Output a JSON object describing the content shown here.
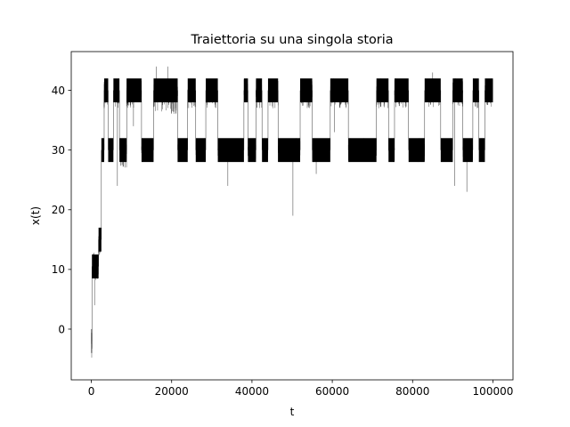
{
  "chart_data": {
    "type": "line",
    "title": "Traiettoria su una singola storia",
    "xlabel": "t",
    "ylabel": "x(t)",
    "xlim": [
      -5000,
      105000
    ],
    "ylim": [
      -8.5,
      46.5
    ],
    "xticks": [
      0,
      20000,
      40000,
      60000,
      80000,
      100000
    ],
    "xtick_labels": [
      "0",
      "20000",
      "40000",
      "60000",
      "80000",
      "100000"
    ],
    "yticks": [
      0,
      10,
      20,
      30,
      40
    ],
    "ytick_labels": [
      "0",
      "10",
      "20",
      "30",
      "40"
    ],
    "grid": false,
    "line_color": "#000000",
    "series": [
      {
        "segments": [
          {
            "t_start": 0,
            "t_end": 150,
            "center": -2,
            "band": [
              -6,
              0
            ]
          },
          {
            "t_start": 150,
            "t_end": 1800,
            "center": 10.5,
            "band": [
              8,
              13
            ]
          },
          {
            "t_start": 1800,
            "t_end": 2500,
            "center": 15,
            "band": [
              12,
              17
            ]
          },
          {
            "t_start": 2500,
            "t_end": 3200,
            "center": 30,
            "band": [
              28,
              32
            ]
          },
          {
            "t_start": 3200,
            "t_end": 4200,
            "center": 40,
            "band": [
              36,
              42
            ]
          },
          {
            "t_start": 4200,
            "t_end": 5500,
            "center": 30,
            "band": [
              28,
              32
            ]
          },
          {
            "t_start": 5500,
            "t_end": 7000,
            "center": 40,
            "band": [
              37,
              42
            ]
          },
          {
            "t_start": 7000,
            "t_end": 8800,
            "center": 30,
            "band": [
              27,
              32
            ]
          },
          {
            "t_start": 8800,
            "t_end": 12500,
            "center": 40,
            "band": [
              37,
              42
            ]
          },
          {
            "t_start": 12500,
            "t_end": 15500,
            "center": 30,
            "band": [
              28,
              32
            ]
          },
          {
            "t_start": 15500,
            "t_end": 21500,
            "center": 40,
            "band": [
              36,
              42
            ]
          },
          {
            "t_start": 21500,
            "t_end": 24000,
            "center": 30,
            "band": [
              28,
              32
            ]
          },
          {
            "t_start": 24000,
            "t_end": 26000,
            "center": 40,
            "band": [
              37,
              42
            ]
          },
          {
            "t_start": 26000,
            "t_end": 28500,
            "center": 30,
            "band": [
              28,
              32
            ]
          },
          {
            "t_start": 28500,
            "t_end": 31500,
            "center": 40,
            "band": [
              37,
              42
            ]
          },
          {
            "t_start": 31500,
            "t_end": 38000,
            "center": 30,
            "band": [
              28,
              32
            ]
          },
          {
            "t_start": 38000,
            "t_end": 39000,
            "center": 40,
            "band": [
              38,
              42
            ]
          },
          {
            "t_start": 39000,
            "t_end": 41000,
            "center": 30,
            "band": [
              28,
              32
            ]
          },
          {
            "t_start": 41000,
            "t_end": 42500,
            "center": 40,
            "band": [
              37,
              42
            ]
          },
          {
            "t_start": 42500,
            "t_end": 44000,
            "center": 30,
            "band": [
              28,
              32
            ]
          },
          {
            "t_start": 44000,
            "t_end": 46500,
            "center": 40,
            "band": [
              37,
              42
            ]
          },
          {
            "t_start": 46500,
            "t_end": 52000,
            "center": 30,
            "band": [
              28,
              32
            ]
          },
          {
            "t_start": 52000,
            "t_end": 55000,
            "center": 40,
            "band": [
              37,
              42
            ]
          },
          {
            "t_start": 55000,
            "t_end": 59500,
            "center": 30,
            "band": [
              28,
              32
            ]
          },
          {
            "t_start": 59500,
            "t_end": 64000,
            "center": 40,
            "band": [
              37,
              42
            ]
          },
          {
            "t_start": 64000,
            "t_end": 71000,
            "center": 30,
            "band": [
              28,
              32
            ]
          },
          {
            "t_start": 71000,
            "t_end": 74000,
            "center": 40,
            "band": [
              37,
              42
            ]
          },
          {
            "t_start": 74000,
            "t_end": 75500,
            "center": 30,
            "band": [
              28,
              32
            ]
          },
          {
            "t_start": 75500,
            "t_end": 79000,
            "center": 40,
            "band": [
              37,
              42
            ]
          },
          {
            "t_start": 79000,
            "t_end": 83000,
            "center": 30,
            "band": [
              28,
              32
            ]
          },
          {
            "t_start": 83000,
            "t_end": 87000,
            "center": 40,
            "band": [
              37,
              42
            ]
          },
          {
            "t_start": 87000,
            "t_end": 90000,
            "center": 30,
            "band": [
              28,
              32
            ]
          },
          {
            "t_start": 90000,
            "t_end": 92500,
            "center": 40,
            "band": [
              37,
              42
            ]
          },
          {
            "t_start": 92500,
            "t_end": 95000,
            "center": 30,
            "band": [
              28,
              32
            ]
          },
          {
            "t_start": 95000,
            "t_end": 96500,
            "center": 40,
            "band": [
              37,
              42
            ]
          },
          {
            "t_start": 96500,
            "t_end": 98000,
            "center": 30,
            "band": [
              28,
              32
            ]
          },
          {
            "t_start": 98000,
            "t_end": 100000,
            "center": 40,
            "band": [
              37,
              42
            ]
          }
        ],
        "spikes": [
          {
            "t": 800,
            "value": 4
          },
          {
            "t": 6500,
            "value": 24
          },
          {
            "t": 10500,
            "value": 34
          },
          {
            "t": 16200,
            "value": 44
          },
          {
            "t": 19000,
            "value": 44
          },
          {
            "t": 34000,
            "value": 24
          },
          {
            "t": 50200,
            "value": 19
          },
          {
            "t": 56000,
            "value": 26
          },
          {
            "t": 60500,
            "value": 33
          },
          {
            "t": 85000,
            "value": 43
          },
          {
            "t": 90500,
            "value": 24
          },
          {
            "t": 93500,
            "value": 23
          }
        ]
      }
    ]
  }
}
